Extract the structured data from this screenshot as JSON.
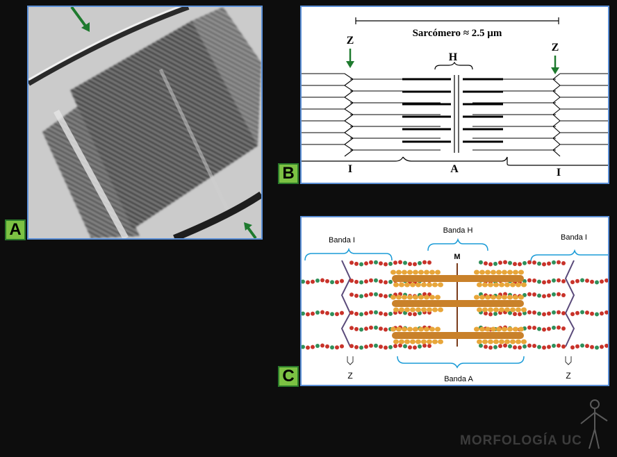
{
  "labels": {
    "panel_a": "A",
    "panel_b": "B",
    "panel_c": "C"
  },
  "panel_b": {
    "sarcomere_label": "Sarcómero ≈ 2.5 µm",
    "z_left": "Z",
    "z_right": "Z",
    "h_label": "H",
    "i_left": "I",
    "a_label": "A",
    "i_right": "I"
  },
  "panel_c": {
    "banda_i_left": "Banda I",
    "banda_h": "Banda H",
    "m_label": "M",
    "banda_i_right": "Banda I",
    "z_left": "Z",
    "banda_a": "Banda A",
    "z_right": "Z"
  },
  "logo": "MORFOLOGÍA UC",
  "colors": {
    "panel_border": "#5b8fd6",
    "tag_fill": "#7cc243",
    "arrow_green": "#1e7a2e",
    "bracket_blue": "#1a9bd7",
    "myosin_orange": "#e8a63a"
  }
}
